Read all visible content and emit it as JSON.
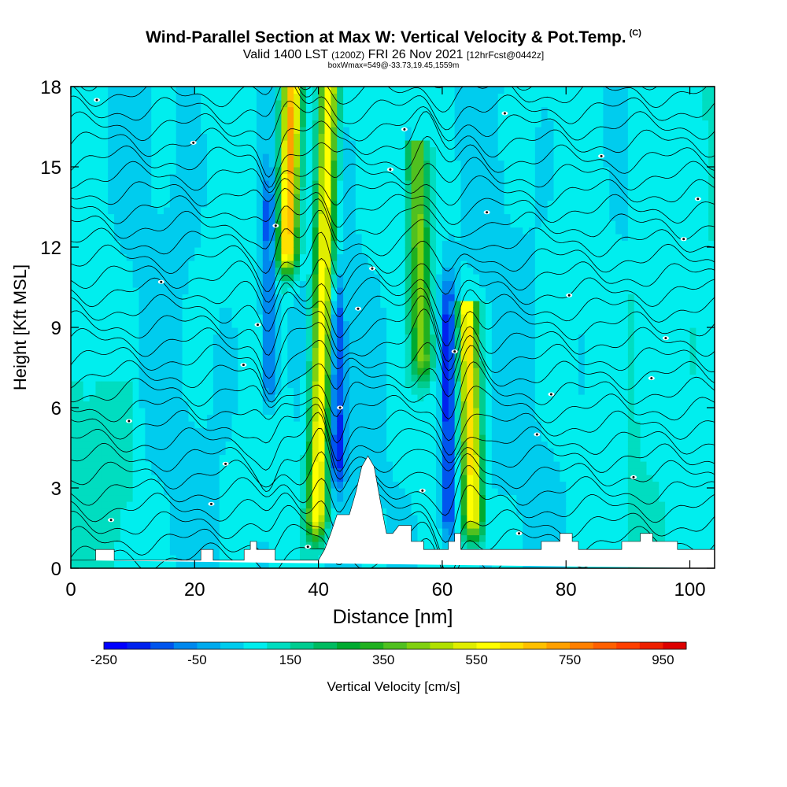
{
  "chart_data": {
    "type": "heatmap",
    "title": "Wind-Parallel Section at Max W: Vertical Velocity & Pot.Temp.",
    "title_mark": "(C)",
    "subtitle_main": "Valid 1400 LST",
    "subtitle_utc": "(1200Z)",
    "subtitle_date": "FRI 26 Nov 2021",
    "subtitle_fcst": "[12hrFcst@0442z]",
    "subtitle2": "boxWmax=549@-33.73,19.45,1559m",
    "xlabel": "Distance [nm]",
    "ylabel": "Height [Kft MSL]",
    "xlim": [
      0,
      104
    ],
    "ylim": [
      0,
      18
    ],
    "xticks": [
      0,
      20,
      40,
      60,
      80,
      100
    ],
    "yticks": [
      0,
      3,
      6,
      9,
      12,
      15,
      18
    ],
    "colorbar": {
      "label": "Vertical Velocity [cm/s]",
      "tick_labels": [
        "-250",
        "-50",
        "150",
        "350",
        "550",
        "750",
        "950"
      ],
      "levels": [
        -250,
        -200,
        -150,
        -100,
        -50,
        0,
        50,
        100,
        150,
        200,
        250,
        300,
        350,
        400,
        450,
        500,
        550,
        600,
        650,
        700,
        750,
        800,
        850,
        900,
        950,
        1000
      ],
      "colors": [
        "#0000ff",
        "#0022ee",
        "#0055ee",
        "#0088ee",
        "#00aaee",
        "#00ccee",
        "#00eeee",
        "#00ddc0",
        "#00cc90",
        "#00bb60",
        "#00aa30",
        "#20b020",
        "#50c020",
        "#80d010",
        "#b0e000",
        "#e0ee00",
        "#ffff00",
        "#ffe000",
        "#ffc000",
        "#ffa000",
        "#ff8000",
        "#ff6000",
        "#ff4000",
        "#ee2000",
        "#dd0000"
      ]
    },
    "updrafts": [
      {
        "x": 34.5,
        "w": 650,
        "top": 18,
        "bottom": 12
      },
      {
        "x": 40.5,
        "w": 550,
        "top": 18,
        "bottom": 2
      },
      {
        "x": 57,
        "w": 350,
        "top": 16,
        "bottom": 8
      },
      {
        "x": 64.5,
        "w": 560,
        "top": 10,
        "bottom": 2
      }
    ],
    "downdrafts": [
      {
        "x": 32,
        "w": -200,
        "top": 13,
        "bottom": 7
      },
      {
        "x": 43,
        "w": -250,
        "top": 9,
        "bottom": 4
      },
      {
        "x": 61,
        "w": -250,
        "top": 9,
        "bottom": 2
      }
    ],
    "terrain": [
      [
        0,
        0.3
      ],
      [
        4,
        0.3
      ],
      [
        4,
        0.7
      ],
      [
        7,
        0.7
      ],
      [
        7,
        0.3
      ],
      [
        21,
        0.3
      ],
      [
        21,
        0.7
      ],
      [
        23,
        0.7
      ],
      [
        23,
        0.3
      ],
      [
        28,
        0.3
      ],
      [
        28,
        0.7
      ],
      [
        29,
        0.7
      ],
      [
        29,
        1.0
      ],
      [
        30,
        1.0
      ],
      [
        30,
        0.7
      ],
      [
        33,
        0.7
      ],
      [
        33,
        0.3
      ],
      [
        40,
        0.3
      ],
      [
        41,
        0.7
      ],
      [
        42,
        1.3
      ],
      [
        43,
        2.0
      ],
      [
        45,
        2.0
      ],
      [
        46,
        2.8
      ],
      [
        47,
        3.8
      ],
      [
        48,
        4.2
      ],
      [
        49,
        3.8
      ],
      [
        50,
        2.5
      ],
      [
        51,
        1.3
      ],
      [
        52,
        1.3
      ],
      [
        53,
        1.6
      ],
      [
        55,
        1.6
      ],
      [
        55,
        1.0
      ],
      [
        57,
        1.0
      ],
      [
        57,
        0.7
      ],
      [
        61,
        0.7
      ],
      [
        61,
        1.0
      ],
      [
        62,
        1.0
      ],
      [
        62,
        1.3
      ],
      [
        63,
        1.3
      ],
      [
        63,
        0.7
      ],
      [
        76,
        0.7
      ],
      [
        76,
        1.0
      ],
      [
        79,
        1.0
      ],
      [
        79,
        1.3
      ],
      [
        81,
        1.3
      ],
      [
        81,
        1.0
      ],
      [
        82,
        1.0
      ],
      [
        82,
        0.7
      ],
      [
        89,
        0.7
      ],
      [
        89,
        1.0
      ],
      [
        92,
        1.0
      ],
      [
        92,
        1.3
      ],
      [
        94,
        1.3
      ],
      [
        94,
        1.0
      ],
      [
        98,
        1.0
      ],
      [
        98,
        0.7
      ],
      [
        104,
        0.7
      ],
      [
        104,
        0
      ]
    ],
    "isentrope_count": 30,
    "isentrope_labels_count": 30
  }
}
